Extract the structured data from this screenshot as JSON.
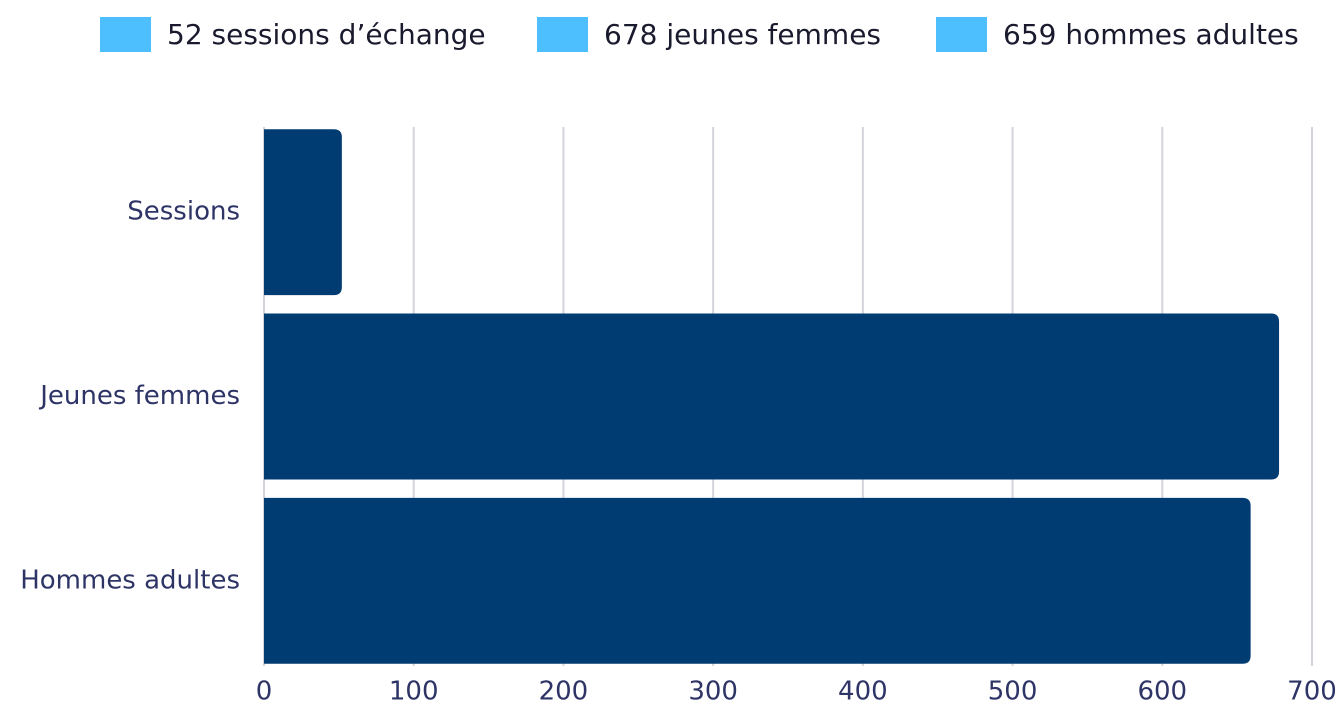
{
  "chart_data": {
    "type": "hbar",
    "legend": [
      "52 sessions d’échange",
      "678 jeunes femmes",
      "659 hommes adultes"
    ],
    "legend_color": "#4dbfff",
    "categories": [
      "Sessions",
      "Jeunes femmes",
      "Hommes adultes"
    ],
    "values": [
      52,
      678,
      659
    ],
    "color": "#003b71",
    "xlim": [
      0,
      700
    ],
    "xticks": [
      0,
      100,
      200,
      300,
      400,
      500,
      600,
      700
    ],
    "grid": true
  }
}
